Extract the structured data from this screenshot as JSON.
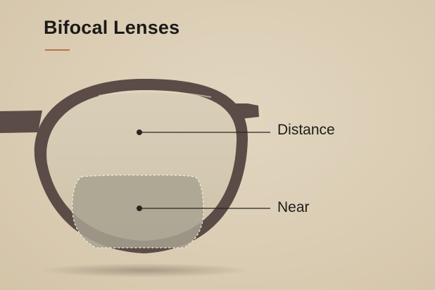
{
  "title": "Bifocal Lenses",
  "labels": {
    "distance": "Distance",
    "near": "Near"
  },
  "colors": {
    "background": "#dbcdb4",
    "frame": "#5b4c47",
    "lens": "#d3c8b0",
    "near_segment": "#a8a290",
    "accent_rule": "#b3754b",
    "text": "#1c1a18"
  }
}
